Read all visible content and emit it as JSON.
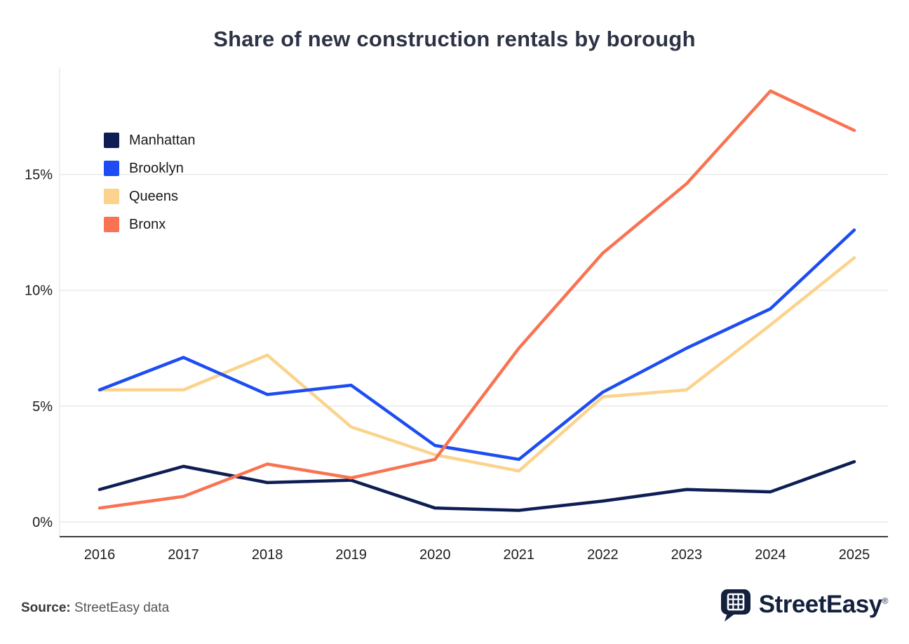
{
  "title": "Share of new construction rentals by borough",
  "source": {
    "label": "Source:",
    "text": " StreetEasy data"
  },
  "logo": {
    "text": "StreetEasy",
    "registered": "®"
  },
  "colors": {
    "manhattan": "#0e1e55",
    "brooklyn": "#1d4df2",
    "queens": "#fbd38c",
    "bronx": "#f97352",
    "grid": "#eaeaea",
    "axis": "#3c3c3c",
    "tick": "#1c1c1c",
    "title": "#2d3345",
    "logo_navy": "#14213e"
  },
  "chart_data": {
    "type": "line",
    "title": "Share of new construction rentals by borough",
    "x": [
      2016,
      2017,
      2018,
      2019,
      2020,
      2021,
      2022,
      2023,
      2024,
      2025
    ],
    "series": [
      {
        "name": "Manhattan",
        "color": "#0e1e55",
        "values": [
          1.4,
          2.4,
          1.7,
          1.8,
          0.6,
          0.5,
          0.9,
          1.4,
          1.3,
          2.6
        ]
      },
      {
        "name": "Brooklyn",
        "color": "#1d4df2",
        "values": [
          5.7,
          7.1,
          5.5,
          5.9,
          3.3,
          2.7,
          5.6,
          7.5,
          9.2,
          12.6
        ]
      },
      {
        "name": "Queens",
        "color": "#fbd38c",
        "values": [
          5.7,
          5.7,
          7.2,
          4.1,
          2.9,
          2.2,
          5.4,
          5.7,
          8.5,
          11.4
        ]
      },
      {
        "name": "Bronx",
        "color": "#f97352",
        "values": [
          0.6,
          1.1,
          2.5,
          1.9,
          2.7,
          7.5,
          11.6,
          14.6,
          18.6,
          16.9
        ]
      }
    ],
    "xlabel": "",
    "ylabel": "",
    "yticks": [
      0,
      5,
      10,
      15
    ],
    "ytick_labels": [
      "0%",
      "5%",
      "10%",
      "15%"
    ],
    "ylim": [
      0,
      19.5
    ],
    "grid": true,
    "legend_position": "top-left",
    "draw_order": [
      0,
      2,
      1,
      3
    ]
  }
}
